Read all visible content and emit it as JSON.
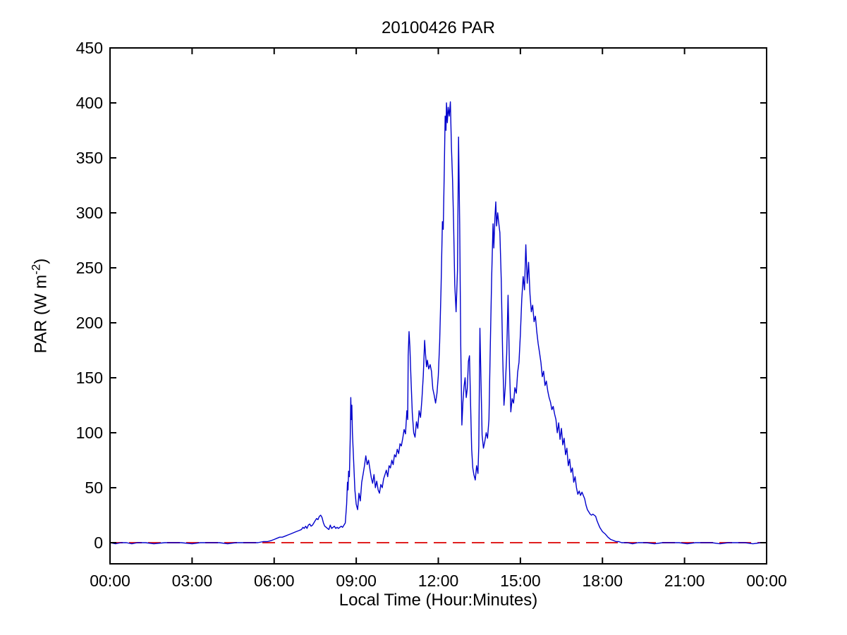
{
  "chart_data": {
    "type": "line",
    "title": "20100426 PAR",
    "xlabel": "Local Time (Hour:Minutes)",
    "ylabel": "PAR (W m-2)",
    "ylabel_main": "PAR (W m",
    "ylabel_sup": "-2",
    "ylabel_end": ")",
    "xlim": [
      0,
      24
    ],
    "ylim": [
      -19.2,
      450
    ],
    "x_tick_hours": [
      0,
      3,
      6,
      9,
      12,
      15,
      18,
      21,
      24
    ],
    "x_tick_labels": [
      "00:00",
      "03:00",
      "06:00",
      "09:00",
      "12:00",
      "15:00",
      "18:00",
      "21:00",
      "00:00"
    ],
    "y_ticks": [
      0,
      50,
      100,
      150,
      200,
      250,
      300,
      350,
      400,
      450
    ],
    "grid": false,
    "legend": false,
    "axis_color": "#000000",
    "series": [
      {
        "name": "zero-reference",
        "color": "#e02020",
        "style": "dashed",
        "points": [
          [
            0,
            0
          ],
          [
            24,
            0
          ]
        ]
      },
      {
        "name": "PAR",
        "color": "#0000cc",
        "style": "solid",
        "points": [
          [
            0,
            0
          ],
          [
            0.2,
            -1
          ],
          [
            0.4,
            0
          ],
          [
            0.6,
            0
          ],
          [
            0.8,
            -1
          ],
          [
            1,
            0
          ],
          [
            1.3,
            0
          ],
          [
            1.6,
            -1
          ],
          [
            2,
            0
          ],
          [
            2.3,
            0
          ],
          [
            2.6,
            0
          ],
          [
            3,
            -1
          ],
          [
            3.3,
            0
          ],
          [
            3.6,
            0
          ],
          [
            4,
            0
          ],
          [
            4.3,
            -1
          ],
          [
            4.6,
            0
          ],
          [
            5,
            0
          ],
          [
            5.2,
            0
          ],
          [
            5.4,
            0
          ],
          [
            5.6,
            1
          ],
          [
            5.75,
            1
          ],
          [
            5.9,
            2
          ],
          [
            6,
            3
          ],
          [
            6.1,
            4
          ],
          [
            6.2,
            5
          ],
          [
            6.3,
            5
          ],
          [
            6.4,
            6
          ],
          [
            6.5,
            7
          ],
          [
            6.6,
            8
          ],
          [
            6.7,
            9
          ],
          [
            6.8,
            10
          ],
          [
            6.9,
            11
          ],
          [
            7,
            12
          ],
          [
            7.05,
            14
          ],
          [
            7.1,
            13
          ],
          [
            7.15,
            15
          ],
          [
            7.2,
            13
          ],
          [
            7.25,
            16
          ],
          [
            7.3,
            17
          ],
          [
            7.35,
            15
          ],
          [
            7.4,
            16
          ],
          [
            7.45,
            18
          ],
          [
            7.5,
            20
          ],
          [
            7.55,
            22
          ],
          [
            7.6,
            21
          ],
          [
            7.65,
            24
          ],
          [
            7.7,
            25
          ],
          [
            7.75,
            23
          ],
          [
            7.8,
            18
          ],
          [
            7.85,
            15
          ],
          [
            7.9,
            14
          ],
          [
            7.95,
            13
          ],
          [
            8,
            12
          ],
          [
            8.05,
            16
          ],
          [
            8.1,
            13
          ],
          [
            8.15,
            14
          ],
          [
            8.2,
            15
          ],
          [
            8.25,
            13
          ],
          [
            8.3,
            14
          ],
          [
            8.35,
            13
          ],
          [
            8.4,
            14
          ],
          [
            8.45,
            15
          ],
          [
            8.5,
            14
          ],
          [
            8.55,
            16
          ],
          [
            8.6,
            18
          ],
          [
            8.65,
            35
          ],
          [
            8.68,
            55
          ],
          [
            8.7,
            48
          ],
          [
            8.72,
            65
          ],
          [
            8.75,
            60
          ],
          [
            8.78,
            95
          ],
          [
            8.8,
            132
          ],
          [
            8.82,
            112
          ],
          [
            8.84,
            125
          ],
          [
            8.86,
            100
          ],
          [
            8.9,
            78
          ],
          [
            8.95,
            48
          ],
          [
            9,
            35
          ],
          [
            9.05,
            30
          ],
          [
            9.1,
            45
          ],
          [
            9.15,
            38
          ],
          [
            9.2,
            55
          ],
          [
            9.25,
            62
          ],
          [
            9.3,
            70
          ],
          [
            9.35,
            79
          ],
          [
            9.4,
            71
          ],
          [
            9.45,
            75
          ],
          [
            9.5,
            67
          ],
          [
            9.55,
            59
          ],
          [
            9.6,
            54
          ],
          [
            9.65,
            62
          ],
          [
            9.7,
            50
          ],
          [
            9.75,
            56
          ],
          [
            9.8,
            48
          ],
          [
            9.85,
            45
          ],
          [
            9.9,
            53
          ],
          [
            9.95,
            50
          ],
          [
            10,
            58
          ],
          [
            10.05,
            62
          ],
          [
            10.1,
            66
          ],
          [
            10.15,
            60
          ],
          [
            10.2,
            70
          ],
          [
            10.25,
            68
          ],
          [
            10.3,
            75
          ],
          [
            10.35,
            71
          ],
          [
            10.4,
            80
          ],
          [
            10.45,
            78
          ],
          [
            10.5,
            85
          ],
          [
            10.55,
            81
          ],
          [
            10.6,
            90
          ],
          [
            10.65,
            88
          ],
          [
            10.7,
            95
          ],
          [
            10.75,
            103
          ],
          [
            10.8,
            99
          ],
          [
            10.85,
            120
          ],
          [
            10.88,
            112
          ],
          [
            10.9,
            170
          ],
          [
            10.93,
            192
          ],
          [
            10.96,
            178
          ],
          [
            11,
            150
          ],
          [
            11.05,
            118
          ],
          [
            11.1,
            100
          ],
          [
            11.15,
            96
          ],
          [
            11.2,
            110
          ],
          [
            11.25,
            104
          ],
          [
            11.3,
            120
          ],
          [
            11.35,
            114
          ],
          [
            11.4,
            130
          ],
          [
            11.45,
            152
          ],
          [
            11.5,
            184
          ],
          [
            11.53,
            172
          ],
          [
            11.57,
            160
          ],
          [
            11.6,
            166
          ],
          [
            11.65,
            158
          ],
          [
            11.7,
            162
          ],
          [
            11.75,
            156
          ],
          [
            11.8,
            140
          ],
          [
            11.85,
            134
          ],
          [
            11.9,
            127
          ],
          [
            11.95,
            136
          ],
          [
            12,
            152
          ],
          [
            12.05,
            182
          ],
          [
            12.1,
            232
          ],
          [
            12.15,
            292
          ],
          [
            12.18,
            285
          ],
          [
            12.22,
            340
          ],
          [
            12.25,
            388
          ],
          [
            12.28,
            375
          ],
          [
            12.3,
            400
          ],
          [
            12.33,
            382
          ],
          [
            12.36,
            396
          ],
          [
            12.4,
            388
          ],
          [
            12.44,
            401
          ],
          [
            12.48,
            360
          ],
          [
            12.52,
            330
          ],
          [
            12.56,
            290
          ],
          [
            12.6,
            235
          ],
          [
            12.65,
            210
          ],
          [
            12.7,
            248
          ],
          [
            12.74,
            369
          ],
          [
            12.78,
            290
          ],
          [
            12.82,
            180
          ],
          [
            12.86,
            107
          ],
          [
            12.9,
            128
          ],
          [
            12.94,
            142
          ],
          [
            12.98,
            150
          ],
          [
            13.02,
            132
          ],
          [
            13.06,
            140
          ],
          [
            13.1,
            165
          ],
          [
            13.14,
            170
          ],
          [
            13.18,
            125
          ],
          [
            13.22,
            85
          ],
          [
            13.26,
            68
          ],
          [
            13.3,
            62
          ],
          [
            13.35,
            57
          ],
          [
            13.4,
            70
          ],
          [
            13.45,
            63
          ],
          [
            13.48,
            88
          ],
          [
            13.52,
            195
          ],
          [
            13.55,
            160
          ],
          [
            13.6,
            98
          ],
          [
            13.65,
            86
          ],
          [
            13.7,
            92
          ],
          [
            13.75,
            100
          ],
          [
            13.8,
            95
          ],
          [
            13.85,
            112
          ],
          [
            13.9,
            178
          ],
          [
            13.95,
            240
          ],
          [
            14,
            290
          ],
          [
            14.03,
            268
          ],
          [
            14.07,
            296
          ],
          [
            14.1,
            310
          ],
          [
            14.13,
            288
          ],
          [
            14.17,
            300
          ],
          [
            14.2,
            293
          ],
          [
            14.25,
            282
          ],
          [
            14.3,
            240
          ],
          [
            14.35,
            172
          ],
          [
            14.4,
            125
          ],
          [
            14.45,
            142
          ],
          [
            14.5,
            172
          ],
          [
            14.55,
            225
          ],
          [
            14.6,
            160
          ],
          [
            14.65,
            119
          ],
          [
            14.7,
            131
          ],
          [
            14.75,
            127
          ],
          [
            14.8,
            141
          ],
          [
            14.85,
            136
          ],
          [
            14.9,
            155
          ],
          [
            14.95,
            164
          ],
          [
            15,
            190
          ],
          [
            15.05,
            221
          ],
          [
            15.1,
            242
          ],
          [
            15.15,
            230
          ],
          [
            15.2,
            271
          ],
          [
            15.25,
            236
          ],
          [
            15.3,
            255
          ],
          [
            15.35,
            226
          ],
          [
            15.4,
            210
          ],
          [
            15.45,
            216
          ],
          [
            15.5,
            201
          ],
          [
            15.55,
            206
          ],
          [
            15.6,
            192
          ],
          [
            15.65,
            181
          ],
          [
            15.7,
            173
          ],
          [
            15.75,
            164
          ],
          [
            15.8,
            151
          ],
          [
            15.85,
            156
          ],
          [
            15.9,
            143
          ],
          [
            15.95,
            147
          ],
          [
            16,
            138
          ],
          [
            16.05,
            132
          ],
          [
            16.1,
            128
          ],
          [
            16.15,
            121
          ],
          [
            16.2,
            124
          ],
          [
            16.25,
            117
          ],
          [
            16.3,
            112
          ],
          [
            16.35,
            100
          ],
          [
            16.4,
            109
          ],
          [
            16.45,
            94
          ],
          [
            16.5,
            104
          ],
          [
            16.55,
            89
          ],
          [
            16.6,
            95
          ],
          [
            16.65,
            80
          ],
          [
            16.7,
            86
          ],
          [
            16.75,
            70
          ],
          [
            16.8,
            76
          ],
          [
            16.85,
            64
          ],
          [
            16.9,
            68
          ],
          [
            16.95,
            55
          ],
          [
            17,
            60
          ],
          [
            17.05,
            50
          ],
          [
            17.1,
            44
          ],
          [
            17.15,
            47
          ],
          [
            17.2,
            43
          ],
          [
            17.25,
            46
          ],
          [
            17.3,
            43
          ],
          [
            17.35,
            40
          ],
          [
            17.4,
            34
          ],
          [
            17.45,
            30
          ],
          [
            17.5,
            28
          ],
          [
            17.55,
            26
          ],
          [
            17.6,
            25
          ],
          [
            17.65,
            26
          ],
          [
            17.7,
            25
          ],
          [
            17.75,
            24
          ],
          [
            17.8,
            20
          ],
          [
            17.85,
            17
          ],
          [
            17.9,
            14
          ],
          [
            17.95,
            12
          ],
          [
            18,
            10
          ],
          [
            18.1,
            8
          ],
          [
            18.2,
            5
          ],
          [
            18.3,
            3
          ],
          [
            18.4,
            2
          ],
          [
            18.5,
            1
          ],
          [
            18.6,
            1
          ],
          [
            18.7,
            0
          ],
          [
            18.9,
            0
          ],
          [
            19.1,
            -1
          ],
          [
            19.3,
            0
          ],
          [
            19.6,
            0
          ],
          [
            19.9,
            -1
          ],
          [
            20.2,
            0
          ],
          [
            20.5,
            0
          ],
          [
            20.8,
            0
          ],
          [
            21.1,
            -1
          ],
          [
            21.4,
            0
          ],
          [
            21.7,
            0
          ],
          [
            22,
            0
          ],
          [
            22.3,
            -1
          ],
          [
            22.6,
            0
          ],
          [
            22.9,
            0
          ],
          [
            23.2,
            0
          ],
          [
            23.5,
            -1
          ],
          [
            23.8,
            0
          ],
          [
            24,
            0
          ]
        ]
      }
    ]
  }
}
